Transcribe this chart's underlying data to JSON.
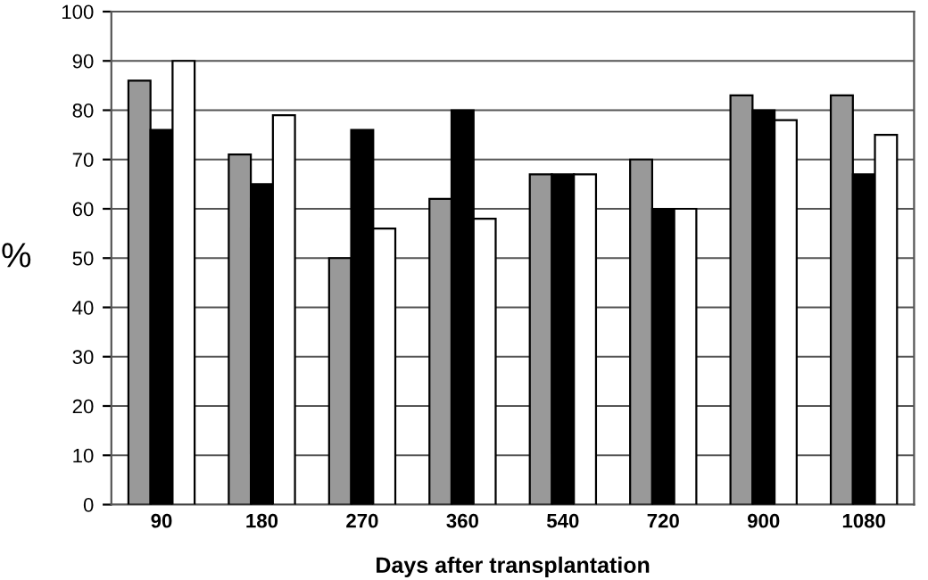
{
  "chart_data": {
    "type": "bar",
    "xlabel": "Days after transplantation",
    "ylabel": "%",
    "categories": [
      "90",
      "180",
      "270",
      "360",
      "540",
      "720",
      "900",
      "1080"
    ],
    "series": [
      {
        "color": "#999999",
        "values": [
          86,
          71,
          50,
          62,
          67,
          70,
          83,
          83
        ]
      },
      {
        "color": "#000000",
        "values": [
          76,
          65,
          76,
          80,
          67,
          60,
          80,
          67
        ]
      },
      {
        "color": "#ffffff",
        "values": [
          90,
          79,
          56,
          58,
          67,
          60,
          78,
          75
        ]
      }
    ],
    "ylim": [
      0,
      100
    ],
    "yticks": [
      0,
      10,
      20,
      30,
      40,
      50,
      60,
      70,
      80,
      90,
      100
    ],
    "grid": "y"
  }
}
